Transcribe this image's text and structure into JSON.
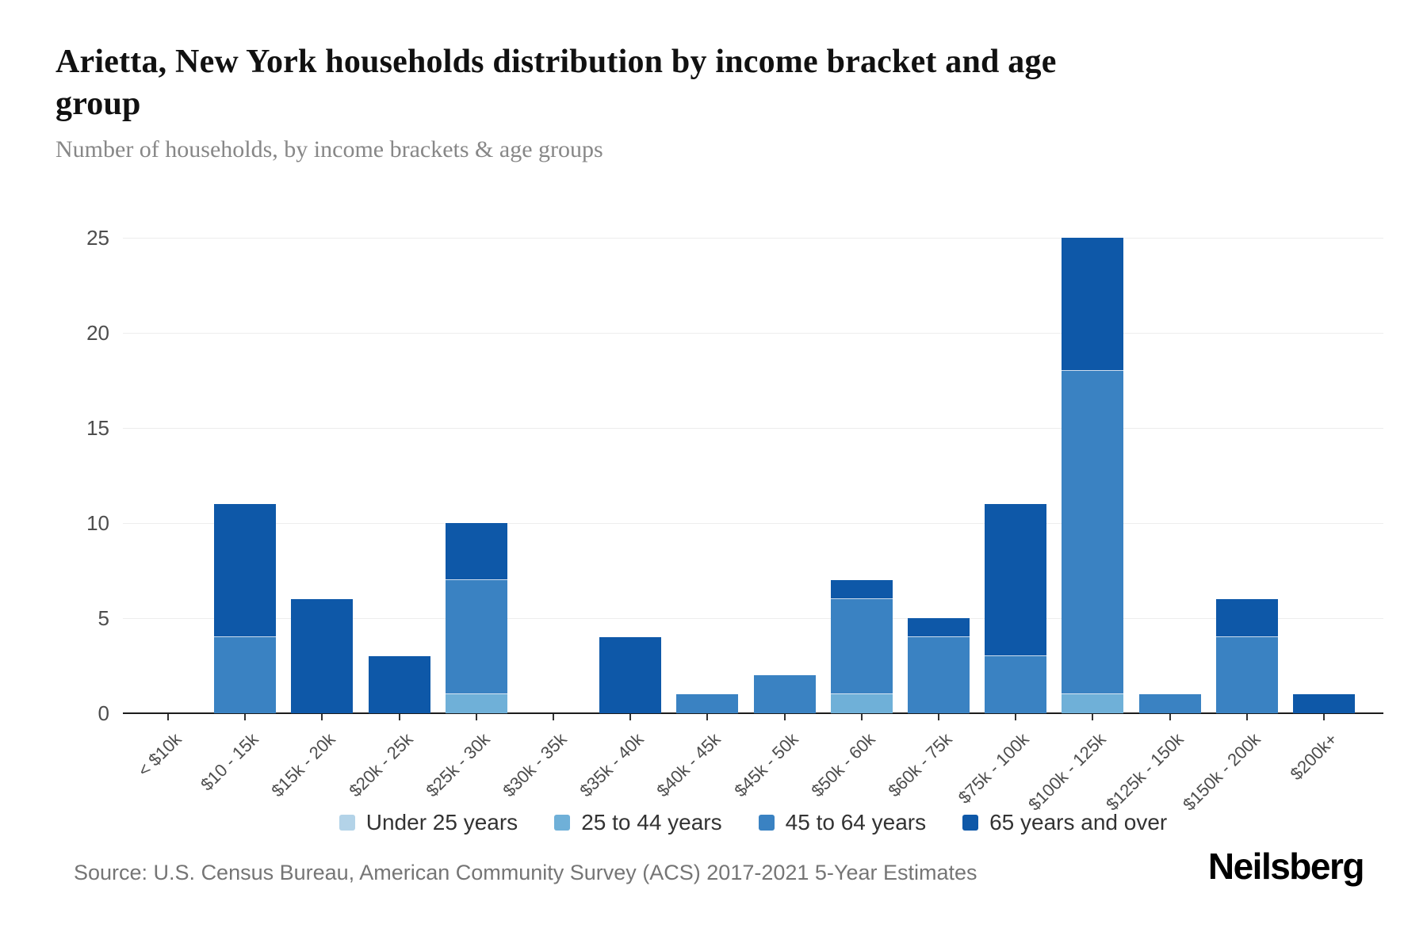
{
  "header": {
    "title": "Arietta, New York households distribution by income bracket and age group",
    "subtitle": "Number of households, by income brackets & age groups"
  },
  "chart_data": {
    "type": "bar",
    "stacked": true,
    "title": "Arietta, New York households distribution by income bracket and age group",
    "subtitle": "Number of households, by income brackets & age groups",
    "xlabel": "",
    "ylabel": "",
    "ylim": [
      0,
      25
    ],
    "yticks": [
      0,
      5,
      10,
      15,
      20,
      25
    ],
    "grid": true,
    "legend_position": "bottom",
    "categories": [
      "< $10k",
      "$10 - 15k",
      "$15k - 20k",
      "$20k - 25k",
      "$25k - 30k",
      "$30k - 35k",
      "$35k - 40k",
      "$40k - 45k",
      "$45k - 50k",
      "$50k - 60k",
      "$60k - 75k",
      "$75k - 100k",
      "$100k - 125k",
      "$125k - 150k",
      "$150k - 200k",
      "$200k+"
    ],
    "series": [
      {
        "name": "Under 25 years",
        "color": "#b3d3e8",
        "values": [
          0,
          0,
          0,
          0,
          0,
          0,
          0,
          0,
          0,
          0,
          0,
          0,
          0,
          0,
          0,
          0
        ]
      },
      {
        "name": "25 to 44 years",
        "color": "#6fb0d8",
        "values": [
          0,
          0,
          0,
          0,
          1,
          0,
          0,
          0,
          0,
          1,
          0,
          0,
          1,
          0,
          0,
          0
        ]
      },
      {
        "name": "45 to 64 years",
        "color": "#3a82c2",
        "values": [
          0,
          4,
          0,
          0,
          6,
          0,
          0,
          1,
          2,
          5,
          4,
          3,
          17,
          1,
          4,
          0
        ]
      },
      {
        "name": "65 years and over",
        "color": "#0e58a8",
        "values": [
          0,
          7,
          6,
          3,
          3,
          0,
          4,
          0,
          0,
          1,
          1,
          8,
          7,
          0,
          2,
          1
        ]
      }
    ],
    "totals": [
      0,
      11,
      6,
      3,
      10,
      0,
      4,
      1,
      2,
      7,
      5,
      11,
      25,
      1,
      6,
      1
    ]
  },
  "footer": {
    "source": "Source: U.S. Census Bureau, American Community Survey (ACS) 2017-2021 5-Year Estimates",
    "brand": "Neilsberg"
  }
}
